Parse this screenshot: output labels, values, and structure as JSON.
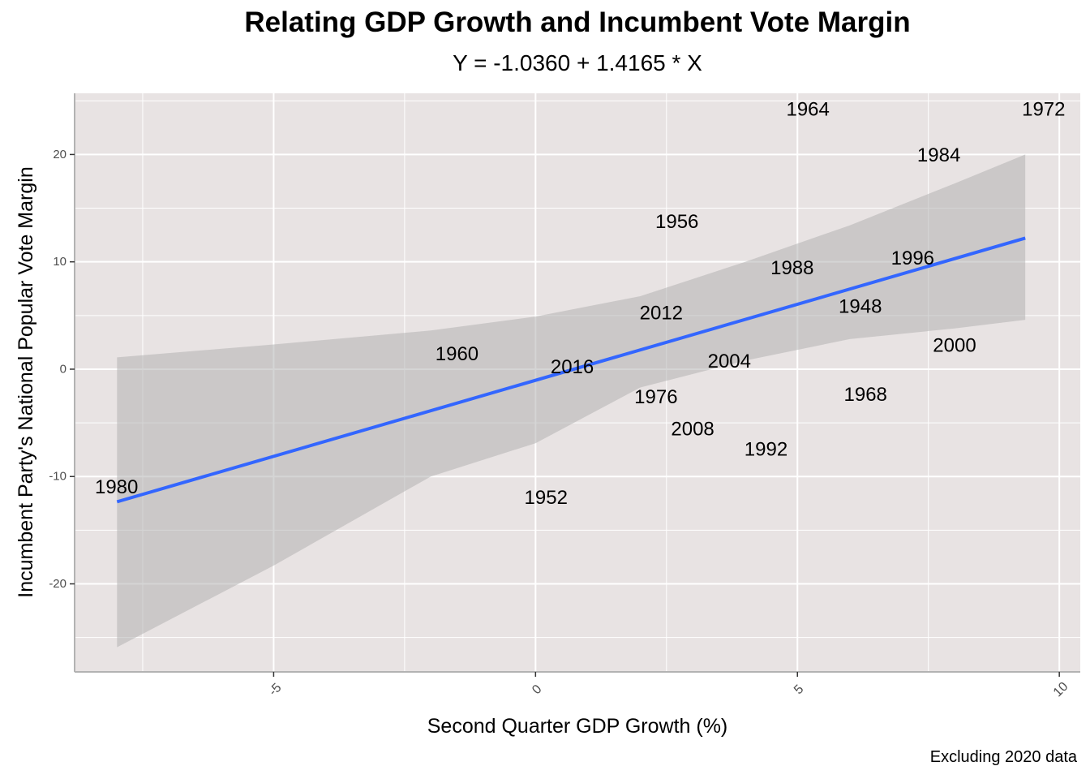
{
  "chart_data": {
    "type": "scatter",
    "title": "Relating GDP Growth and Incumbent Vote Margin",
    "subtitle": "Y = -1.0360 + 1.4165 * X",
    "caption": "Excluding 2020 data",
    "xlabel": "Second Quarter GDP Growth (%)",
    "ylabel": "Incumbent Party's National Popular Vote Margin",
    "xlim": [
      -8.8,
      10.4
    ],
    "ylim": [
      -28.2,
      25.7
    ],
    "xticks": [
      -5,
      0,
      5,
      10
    ],
    "yticks": [
      -20,
      -10,
      0,
      10,
      20
    ],
    "grid": true,
    "tick_labels_x": [
      "-5",
      "0",
      "5",
      "10"
    ],
    "tick_labels_y": [
      "-20",
      "-10",
      "0",
      "10",
      "20"
    ],
    "points": [
      {
        "label": "1948",
        "x": 6.2,
        "y": 5.8
      },
      {
        "label": "1952",
        "x": 0.2,
        "y": -12.0
      },
      {
        "label": "1956",
        "x": 2.7,
        "y": 13.7
      },
      {
        "label": "1960",
        "x": -1.5,
        "y": 1.4
      },
      {
        "label": "1964",
        "x": 5.2,
        "y": 24.2
      },
      {
        "label": "1968",
        "x": 6.3,
        "y": -2.4
      },
      {
        "label": "1972",
        "x": 9.7,
        "y": 24.2
      },
      {
        "label": "1976",
        "x": 2.3,
        "y": -2.6
      },
      {
        "label": "1980",
        "x": -8.0,
        "y": -11.0
      },
      {
        "label": "1984",
        "x": 7.7,
        "y": 19.9
      },
      {
        "label": "1988",
        "x": 4.9,
        "y": 9.4
      },
      {
        "label": "1992",
        "x": 4.4,
        "y": -7.5
      },
      {
        "label": "1996",
        "x": 7.2,
        "y": 10.3
      },
      {
        "label": "2000",
        "x": 8.0,
        "y": 2.2
      },
      {
        "label": "2004",
        "x": 3.7,
        "y": 0.7
      },
      {
        "label": "2008",
        "x": 3.0,
        "y": -5.6
      },
      {
        "label": "2012",
        "x": 2.4,
        "y": 5.2
      },
      {
        "label": "2016",
        "x": 0.7,
        "y": 0.2
      }
    ],
    "fit_line": {
      "intercept": -1.036,
      "slope": 1.4165,
      "x_range": [
        -7.99,
        9.35
      ],
      "color": "#3366FF"
    },
    "confidence_band": {
      "x": [
        -7.99,
        -5,
        -2,
        0,
        2,
        4,
        6,
        8,
        9.35
      ],
      "upper": [
        1.1,
        2.3,
        3.6,
        4.9,
        6.8,
        10.0,
        13.4,
        17.3,
        20.0
      ],
      "lower": [
        -25.9,
        -18.3,
        -10.0,
        -6.9,
        -1.7,
        0.8,
        2.8,
        3.8,
        4.6
      ]
    },
    "colors": {
      "panel": "#E8E3E3",
      "grid": "#FFFFFF",
      "band": "#B3B3B3",
      "text": "#000000"
    }
  }
}
